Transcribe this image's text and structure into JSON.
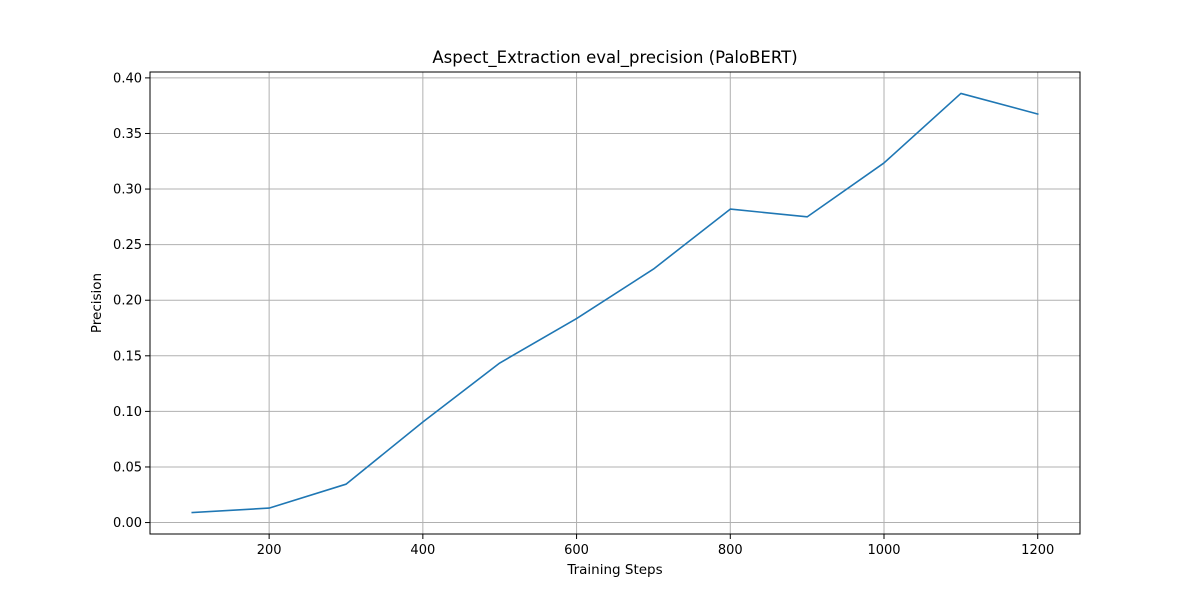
{
  "chart_data": {
    "type": "line",
    "title": "Aspect_Extraction eval_precision (PaloBERT)",
    "xlabel": "Training Steps",
    "ylabel": "Precision",
    "xlim": [
      45,
      1255
    ],
    "ylim": [
      -0.0103,
      0.4053
    ],
    "xticks": [
      200,
      400,
      600,
      800,
      1000,
      1200
    ],
    "yticks": [
      0.0,
      0.05,
      0.1,
      0.15,
      0.2,
      0.25,
      0.3,
      0.35,
      0.4
    ],
    "xtick_labels": [
      "200",
      "400",
      "600",
      "800",
      "1000",
      "1200"
    ],
    "ytick_labels": [
      "0.00",
      "0.05",
      "0.10",
      "0.15",
      "0.20",
      "0.25",
      "0.30",
      "0.35",
      "0.40"
    ],
    "grid": true,
    "series": [
      {
        "color": "#1f77b4",
        "x": [
          100,
          200,
          300,
          400,
          500,
          600,
          700,
          800,
          900,
          1000,
          1100,
          1200
        ],
        "y": [
          0.009,
          0.013,
          0.0345,
          0.0905,
          0.1435,
          0.1835,
          0.228,
          0.282,
          0.275,
          0.3235,
          0.386,
          0.3675
        ]
      }
    ]
  }
}
